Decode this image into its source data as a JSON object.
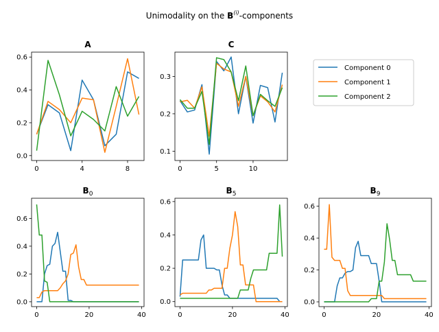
{
  "title": {
    "prefix": "Unimodality on the ",
    "bold": "B",
    "sup": "(i)",
    "suffix": "-components"
  },
  "legend": [
    "Component 0",
    "Component 1",
    "Component 2"
  ],
  "colors": [
    "#1f77b4",
    "#ff7f0e",
    "#2ca02c"
  ],
  "chart_data": [
    {
      "type": "line",
      "title": "A",
      "x": [
        0,
        1,
        2,
        3,
        4,
        5,
        6,
        7,
        8,
        9
      ],
      "xlim": [
        -0.45,
        9.45
      ],
      "ylim": [
        -0.03,
        0.63
      ],
      "xticks": [
        0,
        4,
        8
      ],
      "yticks": [
        0.0,
        0.2,
        0.4,
        0.6
      ],
      "series": [
        {
          "name": "Component 0",
          "values": [
            0.13,
            0.31,
            0.26,
            0.03,
            0.46,
            0.34,
            0.06,
            0.13,
            0.51,
            0.47
          ]
        },
        {
          "name": "Component 1",
          "values": [
            0.13,
            0.33,
            0.28,
            0.2,
            0.35,
            0.34,
            0.02,
            0.3,
            0.59,
            0.25
          ]
        },
        {
          "name": "Component 2",
          "values": [
            0.03,
            0.58,
            0.37,
            0.12,
            0.27,
            0.22,
            0.15,
            0.42,
            0.24,
            0.36
          ]
        }
      ]
    },
    {
      "type": "line",
      "title": "C",
      "x": [
        0,
        1,
        2,
        3,
        4,
        5,
        6,
        7,
        8,
        9,
        10,
        11,
        12,
        13,
        14
      ],
      "xlim": [
        -0.7,
        14.7
      ],
      "ylim": [
        0.075,
        0.365
      ],
      "xticks": [
        0,
        5,
        10
      ],
      "yticks": [
        0.1,
        0.2,
        0.3
      ],
      "series": [
        {
          "name": "Component 0",
          "values": [
            0.235,
            0.205,
            0.21,
            0.278,
            0.092,
            0.34,
            0.315,
            0.352,
            0.2,
            0.3,
            0.175,
            0.276,
            0.27,
            0.178,
            0.31
          ]
        },
        {
          "name": "Component 1",
          "values": [
            0.232,
            0.236,
            0.215,
            0.272,
            0.14,
            0.335,
            0.32,
            0.312,
            0.22,
            0.3,
            0.195,
            0.248,
            0.232,
            0.205,
            0.278
          ]
        },
        {
          "name": "Component 2",
          "values": [
            0.238,
            0.215,
            0.215,
            0.26,
            0.118,
            0.35,
            0.345,
            0.312,
            0.235,
            0.328,
            0.195,
            0.252,
            0.235,
            0.22,
            0.27
          ]
        }
      ]
    },
    {
      "type": "line",
      "title": "B",
      "title_sub": "0",
      "x": [
        0,
        1,
        2,
        3,
        4,
        5,
        6,
        7,
        8,
        9,
        10,
        11,
        12,
        13,
        14,
        15,
        16,
        17,
        18,
        19,
        20,
        21,
        22,
        23,
        24,
        25,
        26,
        27,
        28,
        29,
        30,
        31,
        32,
        33,
        34,
        35,
        36,
        37,
        38,
        39
      ],
      "xlim": [
        -1.95,
        40.95
      ],
      "ylim": [
        -0.035,
        0.745
      ],
      "xticks": [
        0,
        20,
        40
      ],
      "yticks": [
        0.0,
        0.2,
        0.4,
        0.6
      ],
      "series": [
        {
          "name": "Component 0",
          "values": [
            0.0,
            0.0,
            0.0,
            0.2,
            0.26,
            0.27,
            0.4,
            0.42,
            0.5,
            0.36,
            0.22,
            0.22,
            0.01,
            0.01,
            0.0,
            0.0,
            0.0,
            0.0,
            0.0,
            0.0,
            0.0,
            0.0,
            0.0,
            0.0,
            0.0,
            0.0,
            0.0,
            0.0,
            0.0,
            0.0,
            0.0,
            0.0,
            0.0,
            0.0,
            0.0,
            0.0,
            0.0,
            0.0,
            0.0,
            0.0
          ]
        },
        {
          "name": "Component 1",
          "values": [
            0.03,
            0.03,
            0.07,
            0.08,
            0.08,
            0.08,
            0.08,
            0.08,
            0.08,
            0.1,
            0.13,
            0.15,
            0.2,
            0.34,
            0.35,
            0.41,
            0.25,
            0.16,
            0.16,
            0.12,
            0.12,
            0.12,
            0.12,
            0.12,
            0.12,
            0.12,
            0.12,
            0.12,
            0.12,
            0.12,
            0.12,
            0.12,
            0.12,
            0.12,
            0.12,
            0.12,
            0.12,
            0.12,
            0.12,
            0.12
          ]
        },
        {
          "name": "Component 2",
          "values": [
            0.7,
            0.48,
            0.48,
            0.15,
            0.14,
            0.0,
            0.0,
            0.0,
            0.0,
            0.0,
            0.0,
            0.0,
            0.0,
            0.0,
            0.0,
            0.0,
            0.0,
            0.0,
            0.0,
            0.0,
            0.0,
            0.0,
            0.0,
            0.0,
            0.0,
            0.0,
            0.0,
            0.0,
            0.0,
            0.0,
            0.0,
            0.0,
            0.0,
            0.0,
            0.0,
            0.0,
            0.0,
            0.0,
            0.0,
            0.0
          ]
        }
      ]
    },
    {
      "type": "line",
      "title": "B",
      "title_sub": "5",
      "x": [
        0,
        1,
        2,
        3,
        4,
        5,
        6,
        7,
        8,
        9,
        10,
        11,
        12,
        13,
        14,
        15,
        16,
        17,
        18,
        19,
        20,
        21,
        22,
        23,
        24,
        25,
        26,
        27,
        28,
        29,
        30,
        31,
        32,
        33,
        34,
        35,
        36,
        37,
        38,
        39
      ],
      "xlim": [
        -1.95,
        40.95
      ],
      "ylim": [
        -0.03,
        0.62
      ],
      "xticks": [
        0,
        20,
        40
      ],
      "yticks": [
        0.0,
        0.2,
        0.4,
        0.6
      ],
      "series": [
        {
          "name": "Component 0",
          "values": [
            0.03,
            0.25,
            0.25,
            0.25,
            0.25,
            0.25,
            0.25,
            0.25,
            0.37,
            0.4,
            0.2,
            0.2,
            0.2,
            0.2,
            0.19,
            0.19,
            0.1,
            0.04,
            0.04,
            0.02,
            0.02,
            0.02,
            0.02,
            0.02,
            0.02,
            0.02,
            0.02,
            0.02,
            0.02,
            0.02,
            0.02,
            0.02,
            0.02,
            0.02,
            0.02,
            0.02,
            0.02,
            0.02,
            0.0,
            0.0
          ]
        },
        {
          "name": "Component 1",
          "values": [
            0.04,
            0.05,
            0.05,
            0.05,
            0.05,
            0.05,
            0.05,
            0.05,
            0.05,
            0.05,
            0.05,
            0.07,
            0.07,
            0.08,
            0.08,
            0.08,
            0.08,
            0.2,
            0.2,
            0.32,
            0.4,
            0.54,
            0.45,
            0.22,
            0.22,
            0.1,
            0.1,
            0.1,
            0.1,
            0.0,
            0.0,
            0.0,
            0.0,
            0.0,
            0.0,
            0.0,
            0.0,
            0.0,
            0.0,
            0.0
          ]
        },
        {
          "name": "Component 2",
          "values": [
            0.02,
            0.02,
            0.02,
            0.02,
            0.02,
            0.02,
            0.02,
            0.02,
            0.02,
            0.02,
            0.02,
            0.02,
            0.02,
            0.02,
            0.02,
            0.02,
            0.02,
            0.02,
            0.02,
            0.02,
            0.02,
            0.02,
            0.02,
            0.07,
            0.07,
            0.07,
            0.07,
            0.14,
            0.19,
            0.19,
            0.19,
            0.19,
            0.19,
            0.19,
            0.29,
            0.29,
            0.29,
            0.29,
            0.58,
            0.27
          ]
        }
      ]
    },
    {
      "type": "line",
      "title": "B",
      "title_sub": "9",
      "x": [
        0,
        1,
        2,
        3,
        4,
        5,
        6,
        7,
        8,
        9,
        10,
        11,
        12,
        13,
        14,
        15,
        16,
        17,
        18,
        19,
        20,
        21,
        22,
        23,
        24,
        25,
        26,
        27,
        28,
        29,
        30,
        31,
        32,
        33,
        34,
        35,
        36,
        37,
        38,
        39
      ],
      "xlim": [
        -1.95,
        40.95
      ],
      "ylim": [
        -0.03,
        0.65
      ],
      "xticks": [
        0,
        20,
        40
      ],
      "yticks": [
        0.0,
        0.2,
        0.4,
        0.6
      ],
      "series": [
        {
          "name": "Component 0",
          "values": [
            0.0,
            0.0,
            0.0,
            0.0,
            0.0,
            0.1,
            0.15,
            0.15,
            0.18,
            0.19,
            0.19,
            0.2,
            0.34,
            0.38,
            0.29,
            0.29,
            0.29,
            0.29,
            0.24,
            0.24,
            0.24,
            0.13,
            0.0,
            0.0,
            0.0,
            0.0,
            0.0,
            0.0,
            0.0,
            0.0,
            0.0,
            0.0,
            0.0,
            0.0,
            0.0,
            0.0,
            0.0,
            0.0,
            0.0,
            0.0
          ]
        },
        {
          "name": "Component 1",
          "values": [
            0.33,
            0.33,
            0.61,
            0.28,
            0.26,
            0.26,
            0.26,
            0.21,
            0.21,
            0.07,
            0.04,
            0.04,
            0.04,
            0.04,
            0.04,
            0.04,
            0.04,
            0.04,
            0.04,
            0.04,
            0.04,
            0.04,
            0.04,
            0.02,
            0.02,
            0.02,
            0.02,
            0.02,
            0.02,
            0.02,
            0.02,
            0.02,
            0.02,
            0.02,
            0.02,
            0.02,
            0.02,
            0.02,
            0.02,
            0.02
          ]
        },
        {
          "name": "Component 2",
          "values": [
            0.0,
            0.0,
            0.0,
            0.0,
            0.0,
            0.0,
            0.0,
            0.0,
            0.0,
            0.0,
            0.0,
            0.0,
            0.0,
            0.0,
            0.0,
            0.0,
            0.0,
            0.0,
            0.02,
            0.02,
            0.02,
            0.13,
            0.13,
            0.25,
            0.49,
            0.39,
            0.26,
            0.26,
            0.17,
            0.17,
            0.17,
            0.17,
            0.17,
            0.17,
            0.13,
            0.13,
            0.13,
            0.13,
            0.13,
            0.13
          ]
        }
      ]
    }
  ]
}
